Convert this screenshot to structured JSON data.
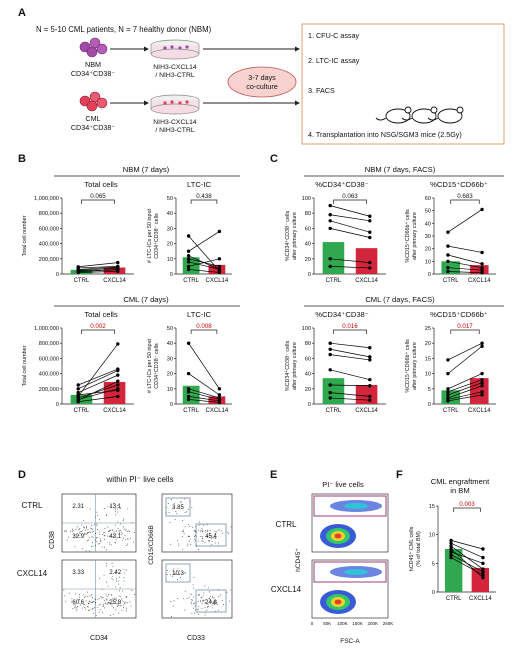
{
  "panels": {
    "A": "A",
    "B": "B",
    "C": "C",
    "D": "D",
    "E": "E",
    "F": "F"
  },
  "panelA": {
    "cohort": "N = 5-10 CML patients, N = 7 healthy donor (NBM)",
    "nbm_line1": "NBM",
    "nbm_line2": "CD34⁺CD38⁻",
    "cml_line1": "CML",
    "cml_line2": "CD34⁺CD38⁻",
    "dish_line1": "NIH3-CXCL14",
    "dish_line2": "/ NIH3-CTRL",
    "coculture_1": "3-7 days",
    "coculture_2": "co-culture",
    "assays": [
      "1. CFU-C assay",
      "2. LTC-IC assay",
      "3. FACS",
      "4. Transplantation into NSG/SGM3 mice (2.5Gy)"
    ]
  },
  "panelB": {
    "nbm_header": "NBM (7 days)",
    "cml_header": "CML (7 days)",
    "total_title": "Total cells",
    "ltc_title": "LTC-IC",
    "total_ylabel": "Total cell number",
    "ltc_ylabel_1": "# LTC-ICs per 50 input",
    "ltc_ylabel_2": "CD34⁺CD38⁻ cells",
    "total_ticks": [
      "0",
      "200,000",
      "400,000",
      "600,000",
      "800,000",
      "1,000,000"
    ],
    "ltc_ticks": [
      "0",
      "10",
      "20",
      "30",
      "40",
      "50"
    ]
  },
  "panelC": {
    "nbm_header": "NBM (7 days, FACS)",
    "cml_header": "CML (7 days, FACS)",
    "cd34_title": "%CD34⁺CD38⁻",
    "cd15_title": "%CD15⁺CD66b⁺",
    "cd34_ylabel_1": "%CD34⁺CD38⁻ cells",
    "cd34_ylabel_2": "after primary culture",
    "cd15_ylabel_1": "%CD15⁺CD66b⁺ cells",
    "cd15_ylabel_2": "after primary culture"
  },
  "panelD": {
    "title": "within PI⁻ live cells",
    "row1": "CTRL",
    "row2": "CXCL14",
    "left_ylabel": "CD38",
    "left_xlabel": "CD34",
    "right_ylabel": "CD15/CD66B",
    "right_xlabel": "CD33",
    "ctrl_left": [
      "2.31",
      "13.1",
      "32.9",
      "43.1"
    ],
    "ctrl_right": [
      "3.85",
      "45.4"
    ],
    "cxcl_left": [
      "3.33",
      "2.42",
      "60.6",
      "25.8"
    ],
    "cxcl_right": [
      "10.3",
      "24.8"
    ]
  },
  "panelE": {
    "title": "PI⁻ live cells",
    "row1": "CTRL",
    "row2": "CXCL14",
    "ylabel": "hCD45⁺",
    "xlabel": "FSC-A",
    "xticks": [
      "0",
      "50K",
      "100K",
      "150K",
      "200K",
      "250K"
    ]
  },
  "panelF": {
    "title_1": "CML engraftment",
    "title_2": "in BM",
    "ylabel_1": "hCD45⁺ CML cells",
    "ylabel_2": "(% of total BM)",
    "p": "0.003"
  },
  "colors": {
    "ctrl": "#2fa84f",
    "cxcl14": "#d3263c",
    "sig": "#cc0000"
  },
  "chart_data": [
    {
      "type": "bar",
      "title": "Total cells",
      "group": "NBM (7 days)",
      "categories": [
        "CTRL",
        "CXCL14"
      ],
      "values": [
        55000,
        85000
      ],
      "ylabel": "Total cell number",
      "ylim": [
        0,
        1000000
      ],
      "p": "0.065",
      "pairs": [
        [
          30000,
          60000
        ],
        [
          50000,
          75000
        ],
        [
          60000,
          90000
        ],
        [
          80000,
          100000
        ],
        [
          95000,
          150000
        ],
        [
          40000,
          55000
        ],
        [
          20000,
          35000
        ]
      ]
    },
    {
      "type": "bar",
      "title": "LTC-IC",
      "group": "NBM (7 days)",
      "categories": [
        "CTRL",
        "CXCL14"
      ],
      "values": [
        11,
        6
      ],
      "ylabel": "# LTC-ICs per 50 input CD34⁺CD38⁻ cells",
      "ylim": [
        0,
        50
      ],
      "p": "0.438",
      "pairs": [
        [
          25,
          2
        ],
        [
          15,
          28
        ],
        [
          10,
          5
        ],
        [
          8,
          3
        ],
        [
          5,
          10
        ],
        [
          3,
          1
        ],
        [
          12,
          3
        ]
      ]
    },
    {
      "type": "bar",
      "title": "Total cells",
      "group": "CML (7 days)",
      "categories": [
        "CTRL",
        "CXCL14"
      ],
      "values": [
        120000,
        290000
      ],
      "ylabel": "Total cell number",
      "ylim": [
        0,
        1000000
      ],
      "p": "0.002",
      "pairs": [
        [
          100000,
          790000
        ],
        [
          200000,
          440000
        ],
        [
          150000,
          380000
        ],
        [
          250000,
          460000
        ],
        [
          80000,
          250000
        ],
        [
          60000,
          200000
        ],
        [
          120000,
          180000
        ],
        [
          50000,
          300000
        ],
        [
          30000,
          100000
        ]
      ]
    },
    {
      "type": "bar",
      "title": "LTC-IC",
      "group": "CML (7 days)",
      "categories": [
        "CTRL",
        "CXCL14"
      ],
      "values": [
        12,
        5
      ],
      "ylabel": "# LTC-ICs per 50 input CD34⁺CD38⁻ cells",
      "ylim": [
        0,
        50
      ],
      "p": "0.008",
      "pairs": [
        [
          40,
          10
        ],
        [
          20,
          6
        ],
        [
          10,
          4
        ],
        [
          8,
          3
        ],
        [
          5,
          2
        ],
        [
          3,
          1
        ]
      ]
    },
    {
      "type": "bar",
      "title": "%CD34⁺CD38⁻",
      "group": "NBM (7 days, FACS)",
      "categories": [
        "CTRL",
        "CXCL14"
      ],
      "values": [
        42,
        34
      ],
      "ylabel": "%CD34⁺CD38⁻ cells after primary culture",
      "ylim": [
        0,
        100
      ],
      "p": "0.063",
      "pairs": [
        [
          90,
          76
        ],
        [
          78,
          70
        ],
        [
          70,
          55
        ],
        [
          60,
          48
        ],
        [
          20,
          15
        ],
        [
          10,
          8
        ]
      ]
    },
    {
      "type": "bar",
      "title": "%CD15⁺CD66b⁺",
      "group": "NBM (7 days, FACS)",
      "categories": [
        "CTRL",
        "CXCL14"
      ],
      "values": [
        10,
        7
      ],
      "ylabel": "%CD15⁺CD66b⁺ cells after primary culture",
      "ylim": [
        0,
        60
      ],
      "p": "0.683",
      "pairs": [
        [
          33,
          51
        ],
        [
          22,
          17
        ],
        [
          15,
          8
        ],
        [
          10,
          5
        ],
        [
          5,
          3
        ],
        [
          2,
          1
        ]
      ]
    },
    {
      "type": "bar",
      "title": "%CD34⁺CD38⁻",
      "group": "CML (7 days, FACS)",
      "categories": [
        "CTRL",
        "CXCL14"
      ],
      "values": [
        34,
        25
      ],
      "ylabel": "%CD34⁺CD38⁻ cells after primary culture",
      "ylim": [
        0,
        100
      ],
      "p": "0.016",
      "pairs": [
        [
          80,
          74
        ],
        [
          72,
          62
        ],
        [
          65,
          58
        ],
        [
          45,
          32
        ],
        [
          25,
          24
        ],
        [
          15,
          10
        ],
        [
          8,
          5
        ]
      ]
    },
    {
      "type": "bar",
      "title": "%CD15⁺CD66b⁺",
      "group": "CML (7 days, FACS)",
      "categories": [
        "CTRL",
        "CXCL14"
      ],
      "values": [
        4.5,
        8.5
      ],
      "ylabel": "%CD15⁺CD66b⁺ cells after primary culture",
      "ylim": [
        0,
        25
      ],
      "p": "0.017",
      "pairs": [
        [
          14.5,
          20
        ],
        [
          10,
          19
        ],
        [
          5,
          10
        ],
        [
          4,
          8
        ],
        [
          3,
          7
        ],
        [
          2,
          6
        ],
        [
          1.5,
          4
        ],
        [
          1,
          3
        ]
      ]
    },
    {
      "type": "bar",
      "title": "CML engraftment in BM",
      "categories": [
        "CTRL",
        "CXCL14"
      ],
      "values": [
        7.5,
        4.2
      ],
      "ylabel": "hCD45⁺ CML cells (% of total BM)",
      "ylim": [
        0,
        15
      ],
      "p": "0.003",
      "pairs": [
        [
          9,
          7.5
        ],
        [
          8.5,
          6
        ],
        [
          8,
          4
        ],
        [
          7.5,
          2.5
        ],
        [
          7,
          5
        ],
        [
          6.5,
          3.5
        ],
        [
          6,
          3
        ]
      ]
    }
  ]
}
